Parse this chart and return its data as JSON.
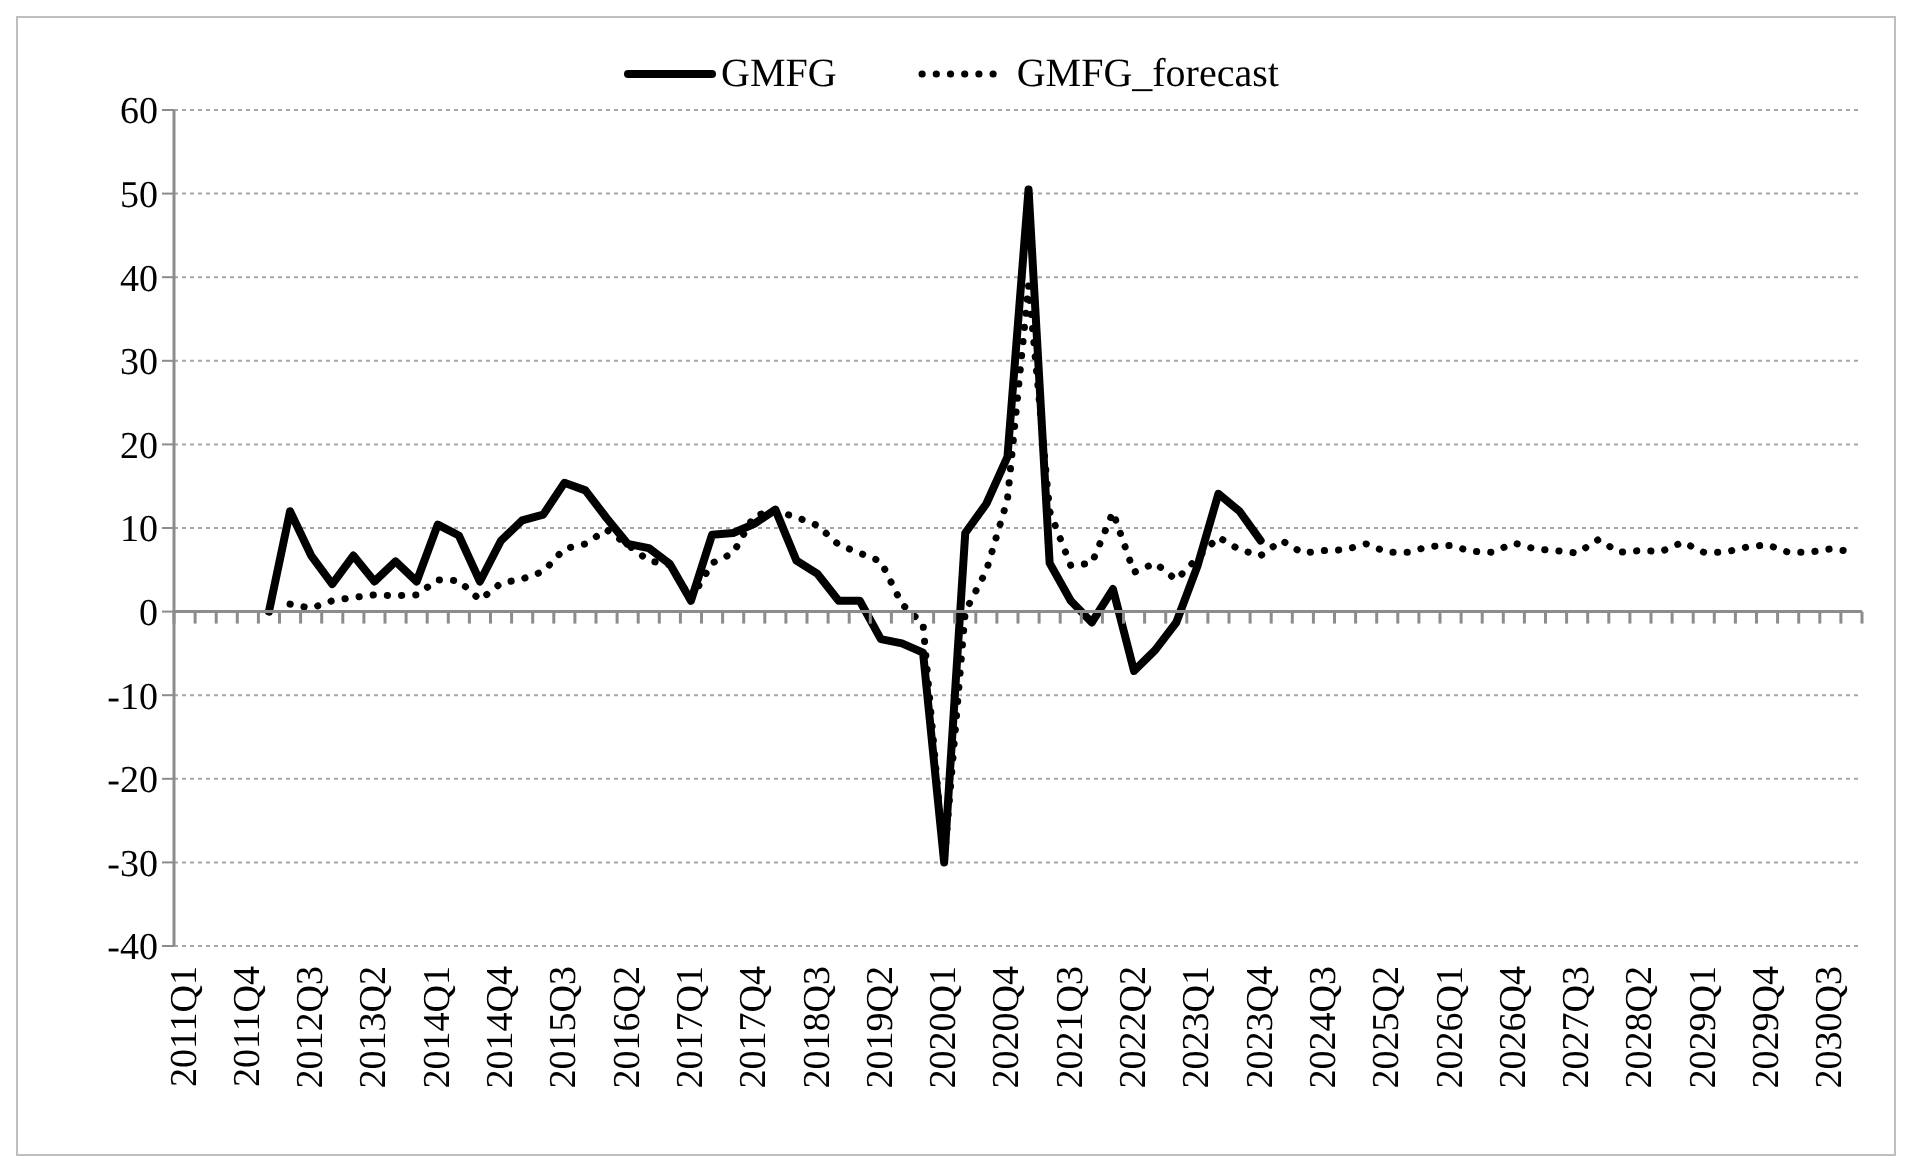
{
  "chart_data": {
    "type": "line",
    "categories": [
      "2011Q1",
      null,
      null,
      "2011Q4",
      null,
      null,
      "2012Q3",
      null,
      null,
      "2013Q2",
      null,
      null,
      "2014Q1",
      null,
      null,
      "2014Q4",
      null,
      null,
      "2015Q3",
      null,
      null,
      "2016Q2",
      null,
      null,
      "2017Q1",
      null,
      null,
      "2017Q4",
      null,
      null,
      "2018Q3",
      null,
      null,
      "2019Q2",
      null,
      null,
      "2020Q1",
      null,
      null,
      "2020Q4",
      null,
      null,
      "2021Q3",
      null,
      null,
      "2022Q2",
      null,
      null,
      "2023Q1",
      null,
      null,
      "2023Q4",
      null,
      null,
      "2024Q3",
      null,
      null,
      "2025Q2",
      null,
      null,
      "2026Q1",
      null,
      null,
      "2026Q4",
      null,
      null,
      "2027Q3",
      null,
      null,
      "2028Q2",
      null,
      null,
      "2029Q1",
      null,
      null,
      "2029Q4",
      null,
      null,
      "2030Q3",
      null
    ],
    "series": [
      {
        "name": "GMFG",
        "color": "#000000",
        "line_style": "solid",
        "values": [
          null,
          null,
          null,
          null,
          0,
          12,
          6.7,
          3.3,
          6.7,
          3.6,
          6,
          3.6,
          10.4,
          9.1,
          3.6,
          8.5,
          10.9,
          11.6,
          15.4,
          14.5,
          11.2,
          8.1,
          7.6,
          5.7,
          1.3,
          9.2,
          9.4,
          10.5,
          12.2,
          6.1,
          4.5,
          1.3,
          1.3,
          -3.3,
          -3.8,
          -4.9,
          -30,
          9.4,
          12.9,
          18.5,
          50.5,
          5.8,
          1.3,
          -1.3,
          2.7,
          -7.1,
          -4.6,
          -1.3,
          5.4,
          14.1,
          12,
          8.5,
          null,
          null,
          null,
          null,
          null,
          null,
          null,
          null,
          null,
          null,
          null,
          null,
          null,
          null,
          null,
          null,
          null,
          null,
          null,
          null,
          null,
          null,
          null,
          null,
          null,
          null,
          null,
          null
        ]
      },
      {
        "name": "GMFG_forecast",
        "color": "#000000",
        "line_style": "dotted",
        "values": [
          null,
          null,
          null,
          null,
          null,
          0.9,
          0.4,
          1.3,
          1.7,
          2,
          1.9,
          2,
          3.8,
          3.7,
          1.4,
          3.4,
          3.9,
          4.8,
          7.5,
          8.1,
          9.8,
          8,
          6.1,
          5.6,
          1.5,
          5.8,
          7,
          11.5,
          12,
          11.3,
          10.3,
          8,
          7,
          6,
          0.9,
          -1.5,
          -30,
          0,
          4.9,
          13.4,
          39,
          12,
          5.5,
          5.8,
          11.9,
          4.7,
          5.8,
          3.8,
          6.4,
          8.9,
          7.4,
          6.7,
          8.5,
          7,
          7.3,
          7.4,
          8.1,
          7.1,
          7.1,
          7.8,
          7.9,
          7.2,
          7.1,
          8.2,
          7.5,
          7.3,
          7,
          8.6,
          7.1,
          7.3,
          7.2,
          8.3,
          7.1,
          7.1,
          7.7,
          8,
          7.1,
          7.1,
          7.5,
          7.2
        ]
      }
    ],
    "ylim": [
      -40,
      60
    ],
    "yticks": [
      -40,
      -30,
      -20,
      -10,
      0,
      10,
      20,
      30,
      40,
      50,
      60
    ],
    "grid": "y",
    "legend": "top",
    "marker": "none"
  }
}
